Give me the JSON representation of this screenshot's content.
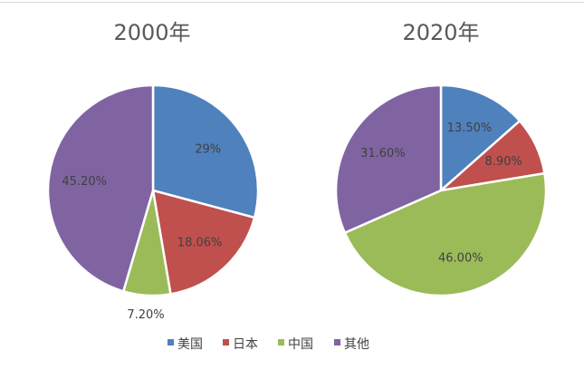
{
  "chart_data": {
    "type": "pie",
    "legend_position": "bottom",
    "categories": [
      "美国",
      "日本",
      "中国",
      "其他"
    ],
    "colors": [
      "#4f81bd",
      "#c0504d",
      "#9bbb59",
      "#8064a2"
    ],
    "charts": [
      {
        "title": "2000年",
        "values": [
          29,
          18.06,
          7.2,
          45.2
        ],
        "labels": [
          "29%",
          "18.06%",
          "7.20%",
          "45.20%"
        ]
      },
      {
        "title": "2020年",
        "values": [
          13.5,
          8.9,
          46.0,
          31.6
        ],
        "labels": [
          "13.50%",
          "8.90%",
          "46.00%",
          "31.60%"
        ]
      }
    ]
  }
}
